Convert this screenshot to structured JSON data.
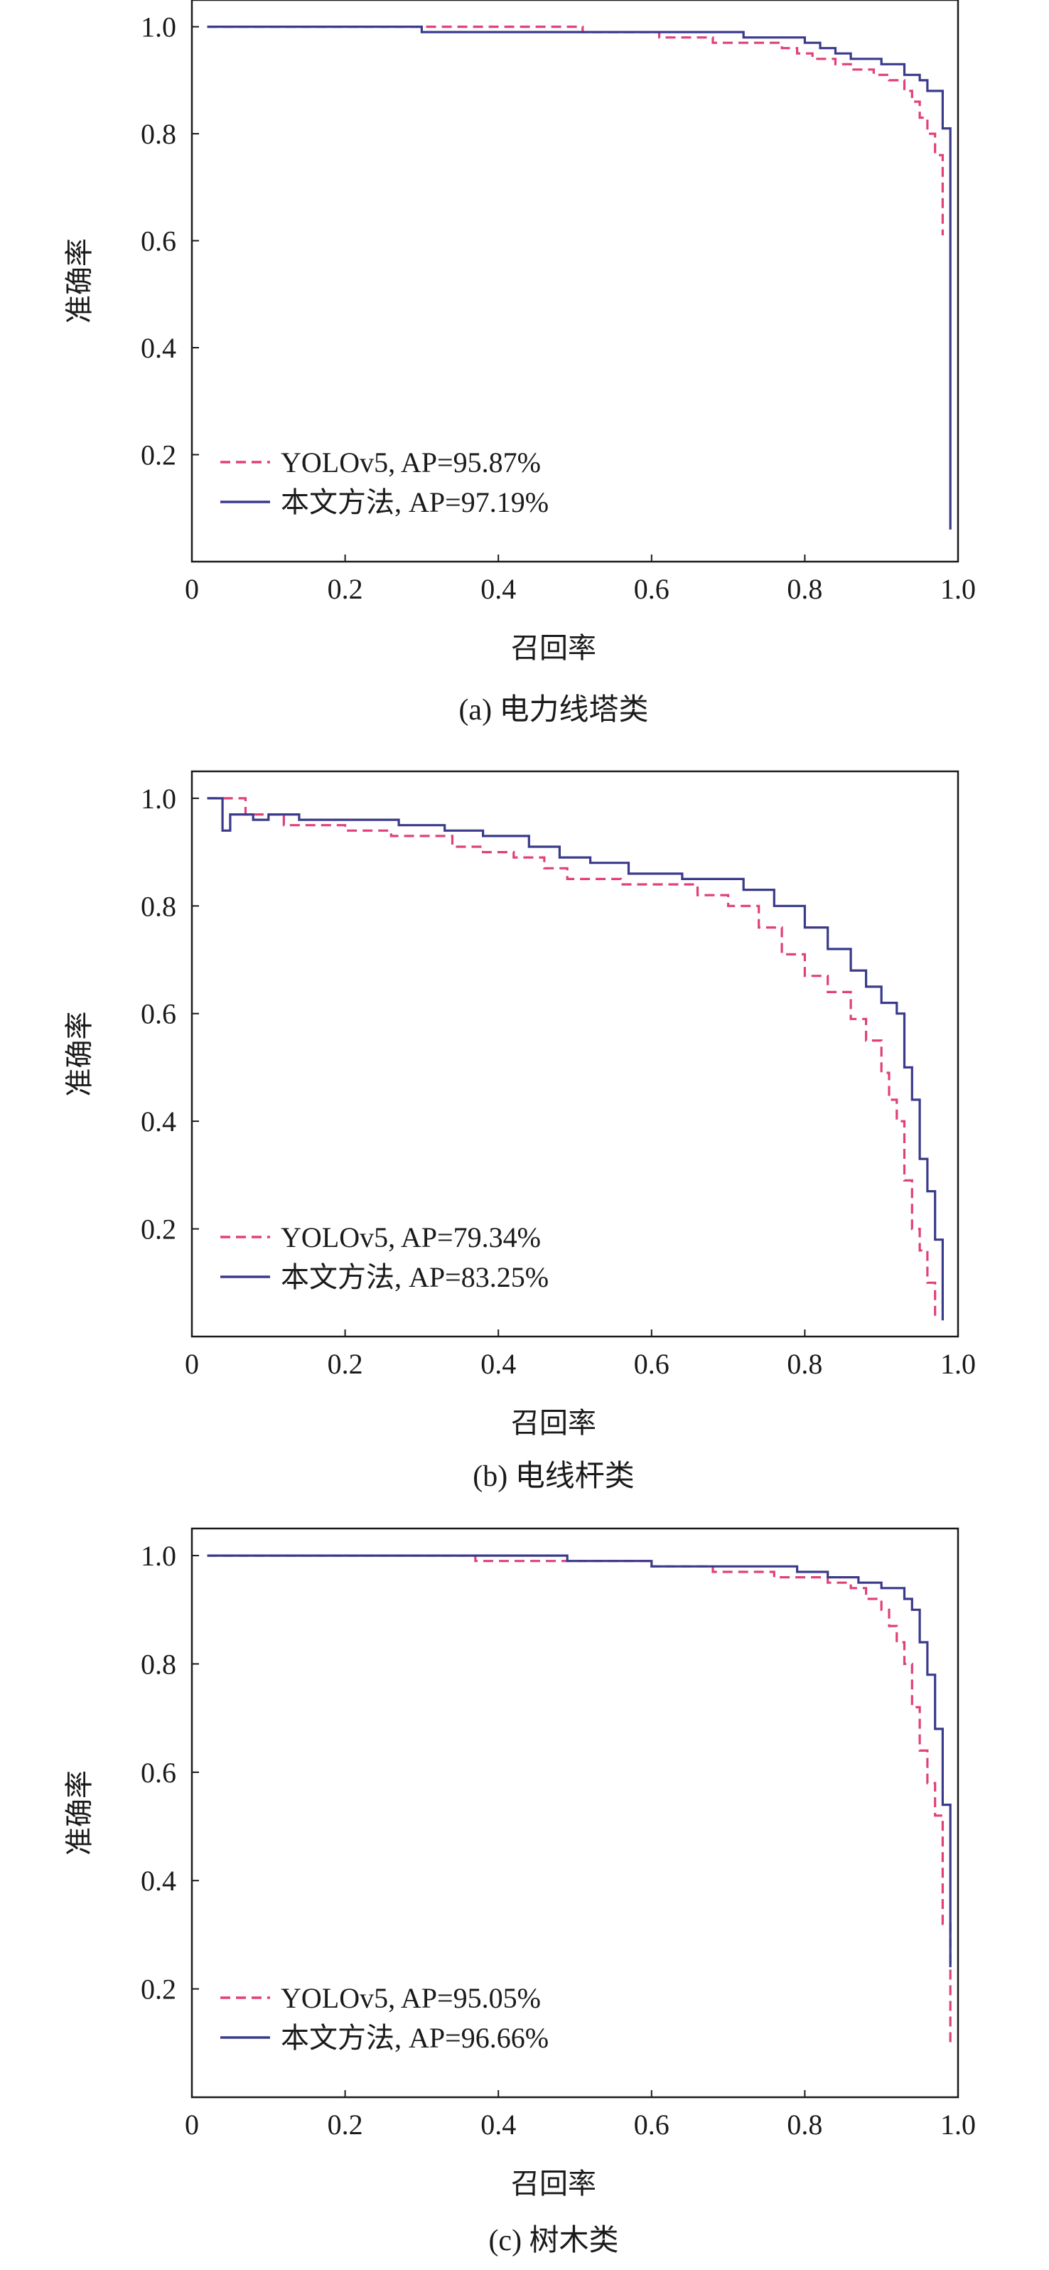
{
  "chart_data": [
    {
      "type": "line",
      "caption": "(a) 电力线塔类",
      "xlabel": "召回率",
      "ylabel": "准确率",
      "xlim": [
        0,
        1.0
      ],
      "ylim": [
        0,
        1.05
      ],
      "x_ticks": [
        "0",
        "0.2",
        "0.4",
        "0.6",
        "0.8",
        "1.0"
      ],
      "y_ticks": [
        "0.2",
        "0.4",
        "0.6",
        "0.8",
        "1.0"
      ],
      "legend_position": "bottom-left",
      "series": [
        {
          "name": "YOLOv5, AP=95.87%",
          "color": "#e0407a",
          "style": "dashed",
          "points": [
            [
              0.02,
              1.0
            ],
            [
              0.51,
              1.0
            ],
            [
              0.51,
              0.99
            ],
            [
              0.61,
              0.99
            ],
            [
              0.61,
              0.98
            ],
            [
              0.68,
              0.98
            ],
            [
              0.68,
              0.97
            ],
            [
              0.75,
              0.97
            ],
            [
              0.77,
              0.96
            ],
            [
              0.79,
              0.95
            ],
            [
              0.81,
              0.94
            ],
            [
              0.84,
              0.93
            ],
            [
              0.86,
              0.92
            ],
            [
              0.89,
              0.91
            ],
            [
              0.91,
              0.9
            ],
            [
              0.93,
              0.88
            ],
            [
              0.94,
              0.86
            ],
            [
              0.95,
              0.83
            ],
            [
              0.96,
              0.8
            ],
            [
              0.97,
              0.76
            ],
            [
              0.98,
              0.72
            ],
            [
              0.98,
              0.61
            ]
          ]
        },
        {
          "name": "本文方法, AP=97.19%",
          "color": "#3a3a8c",
          "style": "solid",
          "points": [
            [
              0.02,
              1.0
            ],
            [
              0.3,
              1.0
            ],
            [
              0.3,
              0.99
            ],
            [
              0.72,
              0.99
            ],
            [
              0.72,
              0.98
            ],
            [
              0.78,
              0.98
            ],
            [
              0.8,
              0.97
            ],
            [
              0.82,
              0.96
            ],
            [
              0.84,
              0.95
            ],
            [
              0.86,
              0.94
            ],
            [
              0.88,
              0.94
            ],
            [
              0.9,
              0.93
            ],
            [
              0.92,
              0.93
            ],
            [
              0.93,
              0.91
            ],
            [
              0.95,
              0.9
            ],
            [
              0.96,
              0.88
            ],
            [
              0.98,
              0.88
            ],
            [
              0.98,
              0.81
            ],
            [
              0.99,
              0.81
            ],
            [
              0.99,
              0.06
            ]
          ]
        }
      ]
    },
    {
      "type": "line",
      "caption": "(b) 电线杆类",
      "xlabel": "召回率",
      "ylabel": "准确率",
      "xlim": [
        0,
        1.0
      ],
      "ylim": [
        0,
        1.05
      ],
      "x_ticks": [
        "0",
        "0.2",
        "0.4",
        "0.6",
        "0.8",
        "1.0"
      ],
      "y_ticks": [
        "0.2",
        "0.4",
        "0.6",
        "0.8",
        "1.0"
      ],
      "legend_position": "bottom-left",
      "series": [
        {
          "name": "YOLOv5, AP=79.34%",
          "color": "#e0407a",
          "style": "dashed",
          "points": [
            [
              0.02,
              1.0
            ],
            [
              0.06,
              1.0
            ],
            [
              0.07,
              0.97
            ],
            [
              0.1,
              0.97
            ],
            [
              0.12,
              0.95
            ],
            [
              0.16,
              0.95
            ],
            [
              0.2,
              0.94
            ],
            [
              0.26,
              0.93
            ],
            [
              0.31,
              0.93
            ],
            [
              0.34,
              0.91
            ],
            [
              0.38,
              0.9
            ],
            [
              0.42,
              0.89
            ],
            [
              0.46,
              0.87
            ],
            [
              0.49,
              0.85
            ],
            [
              0.55,
              0.85
            ],
            [
              0.56,
              0.84
            ],
            [
              0.62,
              0.84
            ],
            [
              0.66,
              0.82
            ],
            [
              0.7,
              0.8
            ],
            [
              0.74,
              0.76
            ],
            [
              0.77,
              0.71
            ],
            [
              0.8,
              0.67
            ],
            [
              0.83,
              0.64
            ],
            [
              0.86,
              0.59
            ],
            [
              0.88,
              0.55
            ],
            [
              0.9,
              0.49
            ],
            [
              0.91,
              0.44
            ],
            [
              0.92,
              0.4
            ],
            [
              0.93,
              0.29
            ],
            [
              0.94,
              0.2
            ],
            [
              0.95,
              0.16
            ],
            [
              0.96,
              0.1
            ],
            [
              0.97,
              0.03
            ]
          ]
        },
        {
          "name": "本文方法, AP=83.25%",
          "color": "#3a3a8c",
          "style": "solid",
          "points": [
            [
              0.02,
              1.0
            ],
            [
              0.04,
              1.0
            ],
            [
              0.04,
              0.94
            ],
            [
              0.05,
              0.97
            ],
            [
              0.08,
              0.96
            ],
            [
              0.1,
              0.97
            ],
            [
              0.14,
              0.96
            ],
            [
              0.2,
              0.96
            ],
            [
              0.27,
              0.95
            ],
            [
              0.33,
              0.94
            ],
            [
              0.38,
              0.93
            ],
            [
              0.44,
              0.91
            ],
            [
              0.48,
              0.89
            ],
            [
              0.52,
              0.88
            ],
            [
              0.57,
              0.86
            ],
            [
              0.62,
              0.86
            ],
            [
              0.64,
              0.85
            ],
            [
              0.69,
              0.85
            ],
            [
              0.72,
              0.83
            ],
            [
              0.76,
              0.8
            ],
            [
              0.8,
              0.76
            ],
            [
              0.83,
              0.72
            ],
            [
              0.86,
              0.68
            ],
            [
              0.88,
              0.65
            ],
            [
              0.9,
              0.62
            ],
            [
              0.92,
              0.6
            ],
            [
              0.93,
              0.58
            ],
            [
              0.93,
              0.5
            ],
            [
              0.94,
              0.44
            ],
            [
              0.95,
              0.33
            ],
            [
              0.96,
              0.27
            ],
            [
              0.97,
              0.18
            ],
            [
              0.98,
              0.1
            ],
            [
              0.98,
              0.03
            ]
          ]
        }
      ]
    },
    {
      "type": "line",
      "caption": "(c) 树木类",
      "xlabel": "召回率",
      "ylabel": "准确率",
      "xlim": [
        0,
        1.0
      ],
      "ylim": [
        0,
        1.05
      ],
      "x_ticks": [
        "0",
        "0.2",
        "0.4",
        "0.6",
        "0.8",
        "1.0"
      ],
      "y_ticks": [
        "0.2",
        "0.4",
        "0.6",
        "0.8",
        "1.0"
      ],
      "legend_position": "bottom-left",
      "series": [
        {
          "name": "YOLOv5, AP=95.05%",
          "color": "#e0407a",
          "style": "dashed",
          "points": [
            [
              0.02,
              1.0
            ],
            [
              0.37,
              1.0
            ],
            [
              0.37,
              0.99
            ],
            [
              0.6,
              0.99
            ],
            [
              0.6,
              0.98
            ],
            [
              0.68,
              0.98
            ],
            [
              0.68,
              0.97
            ],
            [
              0.74,
              0.97
            ],
            [
              0.76,
              0.96
            ],
            [
              0.8,
              0.96
            ],
            [
              0.83,
              0.95
            ],
            [
              0.86,
              0.94
            ],
            [
              0.88,
              0.92
            ],
            [
              0.9,
              0.9
            ],
            [
              0.91,
              0.87
            ],
            [
              0.92,
              0.84
            ],
            [
              0.93,
              0.8
            ],
            [
              0.94,
              0.72
            ],
            [
              0.95,
              0.64
            ],
            [
              0.96,
              0.58
            ],
            [
              0.97,
              0.52
            ],
            [
              0.98,
              0.32
            ],
            [
              0.99,
              0.1
            ]
          ]
        },
        {
          "name": "本文方法, AP=96.66%",
          "color": "#3a3a8c",
          "style": "solid",
          "points": [
            [
              0.02,
              1.0
            ],
            [
              0.49,
              1.0
            ],
            [
              0.49,
              0.99
            ],
            [
              0.6,
              0.99
            ],
            [
              0.6,
              0.98
            ],
            [
              0.77,
              0.98
            ],
            [
              0.79,
              0.97
            ],
            [
              0.83,
              0.96
            ],
            [
              0.87,
              0.95
            ],
            [
              0.9,
              0.94
            ],
            [
              0.92,
              0.94
            ],
            [
              0.93,
              0.92
            ],
            [
              0.94,
              0.9
            ],
            [
              0.95,
              0.84
            ],
            [
              0.96,
              0.78
            ],
            [
              0.97,
              0.68
            ],
            [
              0.98,
              0.54
            ],
            [
              0.99,
              0.24
            ]
          ]
        }
      ]
    }
  ]
}
